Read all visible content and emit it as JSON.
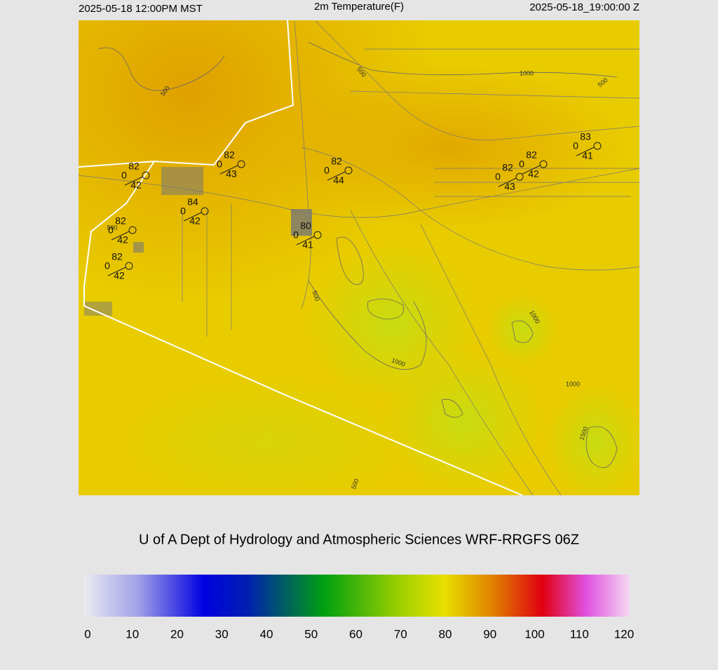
{
  "header": {
    "left": "2025-05-18 12:00PM MST",
    "title": "2m Temperature(F)",
    "right": "2025-05-18_19:00:00 Z"
  },
  "map": {
    "stations": [
      {
        "temp": 82,
        "wind": 0,
        "dew": 42
      },
      {
        "temp": 82,
        "wind": 0,
        "dew": 43
      },
      {
        "temp": 84,
        "wind": 0,
        "dew": 42
      },
      {
        "temp": 82,
        "wind": 0,
        "dew": 42
      },
      {
        "temp": 82,
        "wind": 0,
        "dew": 42
      },
      {
        "temp": 82,
        "wind": 0,
        "dew": 44
      },
      {
        "temp": 80,
        "wind": 0,
        "dew": 41
      },
      {
        "temp": 82,
        "wind": 0,
        "dew": 43
      },
      {
        "temp": 82,
        "wind": 0,
        "dew": 42
      },
      {
        "temp": 83,
        "wind": 0,
        "dew": 41
      }
    ],
    "contour_labels": [
      "500",
      "500",
      "1000",
      "500",
      "500",
      "500",
      "1000",
      "1000",
      "1000",
      "1500",
      "500"
    ]
  },
  "footer": {
    "credit": "U of A Dept of Hydrology and Atmospheric Sciences WRF-RRGFS 06Z"
  },
  "colorbar": {
    "range": [
      0,
      120
    ],
    "ticks": [
      0,
      10,
      20,
      30,
      40,
      50,
      60,
      70,
      80,
      90,
      100,
      110,
      120
    ]
  }
}
